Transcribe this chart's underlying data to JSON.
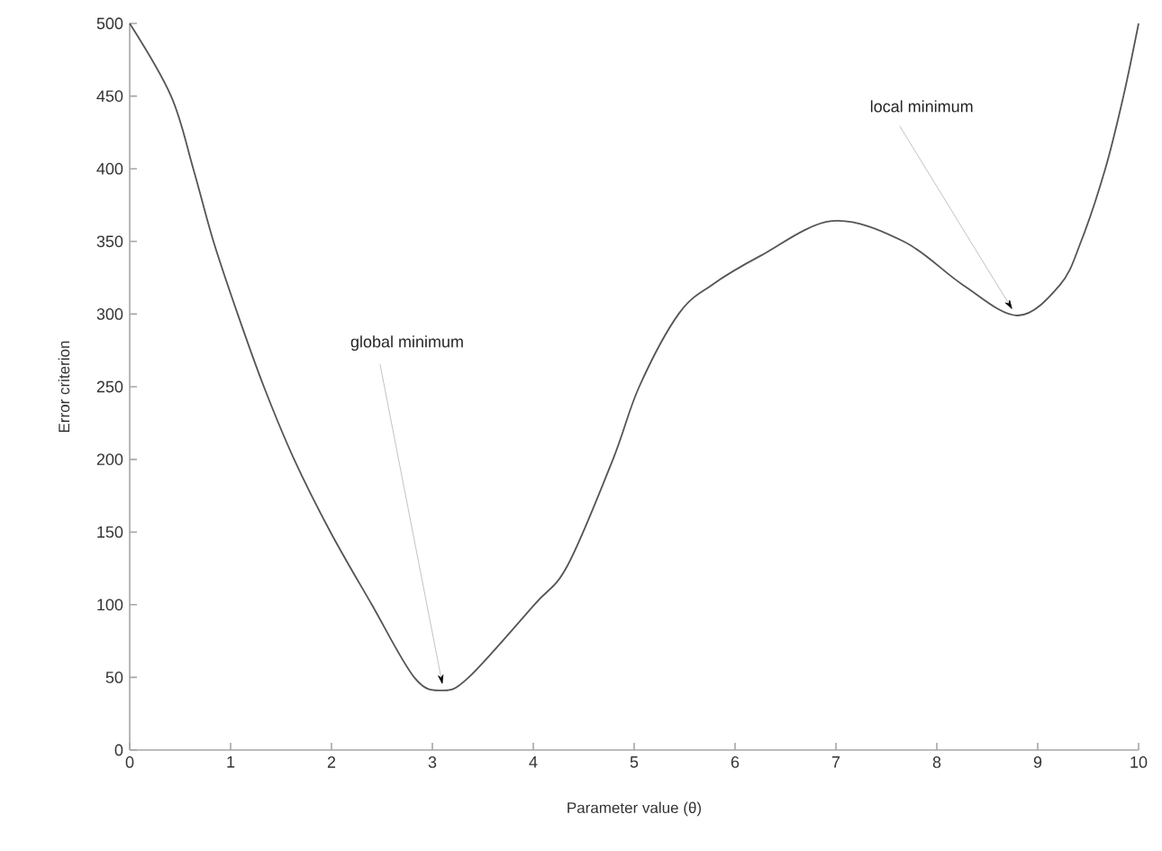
{
  "chart_data": {
    "type": "line",
    "xlabel": "Parameter value (θ)",
    "ylabel": "Error criterion",
    "x": [
      0,
      0.41,
      0.63,
      0.83,
      1.07,
      1.33,
      1.63,
      1.99,
      2.4,
      2.82,
      3.09,
      3.36,
      4.01,
      4.34,
      4.79,
      5.05,
      5.44,
      5.77,
      6.25,
      6.96,
      7.67,
      8.26,
      8.8,
      9.22,
      9.43,
      9.67,
      9.85,
      10
    ],
    "values": [
      500,
      450,
      400,
      350,
      300,
      250,
      200,
      150,
      100,
      50,
      41,
      50,
      100,
      127,
      200,
      250,
      300,
      320,
      340,
      364,
      350,
      320,
      299,
      320,
      350,
      400,
      450,
      500
    ],
    "color": "#555555",
    "annotations": [
      {
        "text": "global minimum",
        "x": 3.1,
        "y": 45
      },
      {
        "text": "local minimum",
        "x": 8.75,
        "y": 303
      }
    ],
    "xlim": [
      0,
      10
    ],
    "ylim": [
      0,
      500
    ],
    "xticks": [
      0,
      1,
      2,
      3,
      4,
      5,
      6,
      7,
      8,
      9,
      10
    ],
    "yticks": [
      0,
      50,
      100,
      150,
      200,
      250,
      300,
      350,
      400,
      450,
      500
    ],
    "grid": false,
    "marker": "none",
    "line_style": "solid"
  }
}
